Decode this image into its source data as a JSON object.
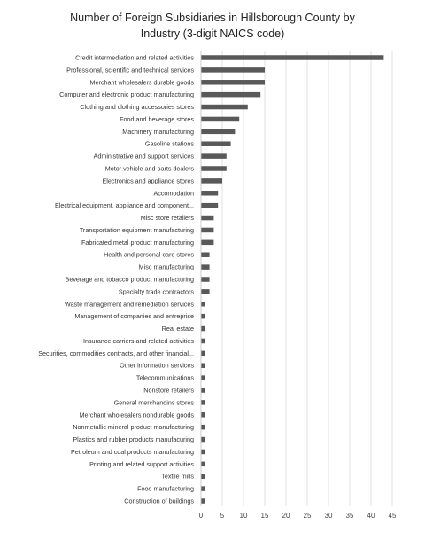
{
  "chart_data": {
    "type": "bar",
    "orientation": "horizontal",
    "title": "Number of Foreign Subsidiaries in Hillsborough  County by Industry (3-digit NAICS code)",
    "title_lines": [
      "Number of Foreign Subsidiaries in Hillsborough  County by",
      "Industry (3-digit NAICS code)"
    ],
    "categories": [
      "Credit intermediation and related activities",
      "Professional, scientific and technical services",
      "Merchant wholesalers durable goods",
      "Computer and electronic product manufacturing",
      "Clothing and clothing accessories stores",
      "Food and beverage stores",
      "Machinery manufacturing",
      "Gasoline stations",
      "Administrative and support services",
      "Motor vehicle and parts dealers",
      "Electronics and appliance stores",
      "Accomodation",
      "Electrical equipment, appliance and component...",
      "Misc store retailers",
      "Transportation equipment manufacturing",
      "Fabricated metal product manufacturing",
      "Health and personal care stores",
      "Misc manufacturing",
      "Beverage and tobacco product manufacturing",
      "Specialty trade contractors",
      "Waste management and remediation services",
      "Management of companies and entreprise",
      "Real estate",
      "Insurance carriers and related activities",
      "Securities, commodities contracts, and other financial...",
      "Other information services",
      "Telecommunications",
      "Nonstore retailers",
      "General merchandins stores",
      "Merchant wholesalers nondurable goods",
      "Nonmetallic mineral product manufacturing",
      "Plastics and rubber products manufacuring",
      "Petroleum and coal products manufacturing",
      "Printing and related support activities",
      "Textile mills",
      "Food manufacturing",
      "Construction of buildings"
    ],
    "values": [
      43,
      15,
      15,
      14,
      11,
      9,
      8,
      7,
      6,
      6,
      5,
      4,
      4,
      3,
      3,
      3,
      2,
      2,
      2,
      2,
      1,
      1,
      1,
      1,
      1,
      1,
      1,
      1,
      1,
      1,
      1,
      1,
      1,
      1,
      1,
      1,
      1
    ],
    "xlim": [
      0,
      45
    ],
    "xticks": [
      0,
      5,
      10,
      15,
      20,
      25,
      30,
      35,
      40,
      45
    ],
    "grid": "vertical",
    "bar_color": "#595959"
  }
}
